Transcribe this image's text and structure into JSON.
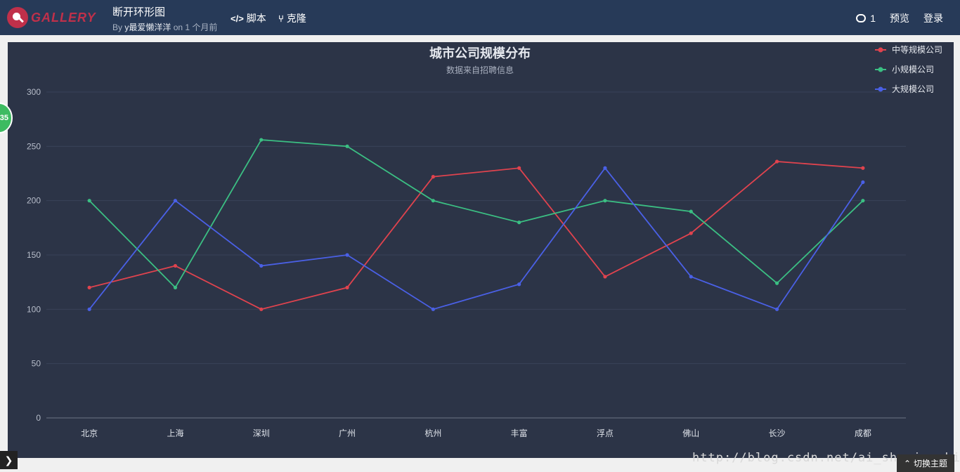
{
  "header": {
    "logo_text": "GALLERY",
    "title": "断开环形图",
    "by_prefix": "By",
    "author": "y最爱懒洋洋",
    "time": "on 1 个月前",
    "nav_script": "脚本",
    "nav_clone": "克隆",
    "comment_count": "1",
    "preview": "预览",
    "login": "登录"
  },
  "float_badge": "35",
  "switch_theme": "切换主题",
  "watermark": "http://blog.csdn.net/ai_shuyingzhixia",
  "colors": {
    "background": "#2c3447",
    "series": [
      "#e0434e",
      "#3bbf83",
      "#4a60e6"
    ]
  },
  "chart_data": {
    "type": "line",
    "title": "城市公司规模分布",
    "subtitle": "数据来自招聘信息",
    "legend_position": "top-right",
    "grid": true,
    "ylim": [
      0,
      300
    ],
    "yticks": [
      0,
      50,
      100,
      150,
      200,
      250,
      300
    ],
    "categories": [
      "北京",
      "上海",
      "深圳",
      "广州",
      "杭州",
      "丰富",
      "浮点",
      "佛山",
      "长沙",
      "成都"
    ],
    "series": [
      {
        "name": "中等规模公司",
        "values": [
          120,
          140,
          100,
          120,
          222,
          230,
          130,
          170,
          236,
          230
        ]
      },
      {
        "name": "小规模公司",
        "values": [
          200,
          120,
          256,
          250,
          200,
          180,
          200,
          190,
          124,
          200
        ]
      },
      {
        "name": "大规模公司",
        "values": [
          100,
          200,
          140,
          150,
          100,
          123,
          230,
          130,
          100,
          217
        ]
      }
    ]
  }
}
